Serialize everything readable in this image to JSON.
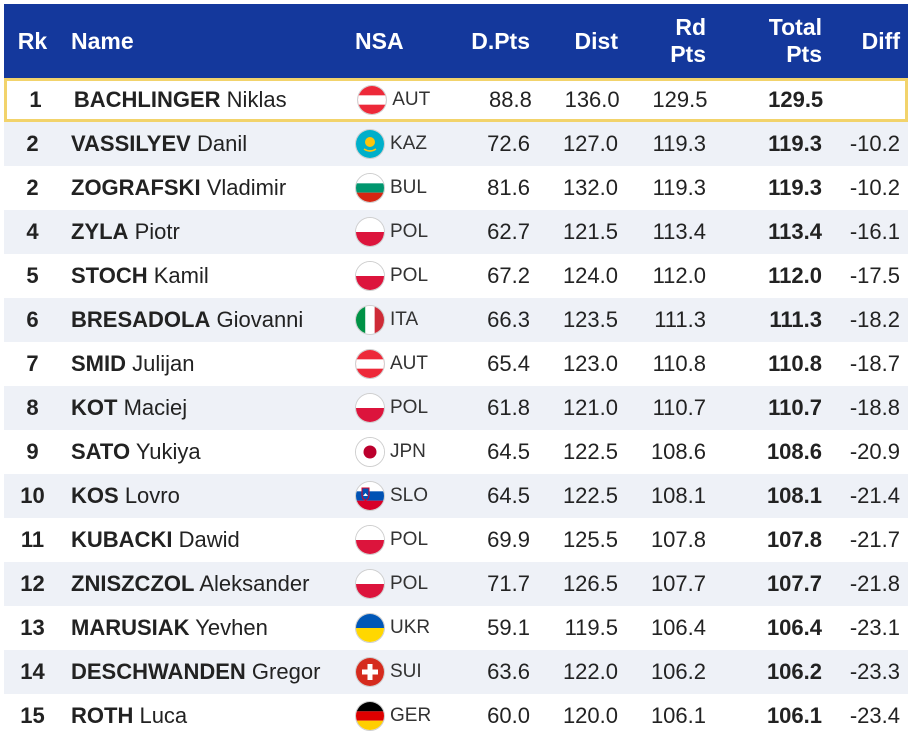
{
  "header": {
    "rk": "Rk",
    "name": "Name",
    "nsa": "NSA",
    "dpts": "D.Pts",
    "dist": "Dist",
    "rd_line1": "Rd",
    "rd_line2": "Pts",
    "total_line1": "Total",
    "total_line2": "Pts",
    "diff": "Diff"
  },
  "colors": {
    "header_bg": "#14389c",
    "highlight_border": "#f2d36b",
    "stripe": "#eef1f7"
  },
  "rows": [
    {
      "rk": "1",
      "surname": "BACHLINGER",
      "given": "Niklas",
      "flag": "aut-flag-icon",
      "nsa": "AUT",
      "dpts": "88.8",
      "dist": "136.0",
      "rd": "129.5",
      "total": "129.5",
      "diff": ""
    },
    {
      "rk": "2",
      "surname": "VASSILYEV",
      "given": "Danil",
      "flag": "kaz-flag-icon",
      "nsa": "KAZ",
      "dpts": "72.6",
      "dist": "127.0",
      "rd": "119.3",
      "total": "119.3",
      "diff": "-10.2"
    },
    {
      "rk": "2",
      "surname": "ZOGRAFSKI",
      "given": "Vladimir",
      "flag": "bul-flag-icon",
      "nsa": "BUL",
      "dpts": "81.6",
      "dist": "132.0",
      "rd": "119.3",
      "total": "119.3",
      "diff": "-10.2"
    },
    {
      "rk": "4",
      "surname": "ZYLA",
      "given": "Piotr",
      "flag": "pol-flag-icon",
      "nsa": "POL",
      "dpts": "62.7",
      "dist": "121.5",
      "rd": "113.4",
      "total": "113.4",
      "diff": "-16.1"
    },
    {
      "rk": "5",
      "surname": "STOCH",
      "given": "Kamil",
      "flag": "pol-flag-icon",
      "nsa": "POL",
      "dpts": "67.2",
      "dist": "124.0",
      "rd": "112.0",
      "total": "112.0",
      "diff": "-17.5"
    },
    {
      "rk": "6",
      "surname": "BRESADOLA",
      "given": "Giovanni",
      "flag": "ita-flag-icon",
      "nsa": "ITA",
      "dpts": "66.3",
      "dist": "123.5",
      "rd": "111.3",
      "total": "111.3",
      "diff": "-18.2"
    },
    {
      "rk": "7",
      "surname": "SMID",
      "given": "Julijan",
      "flag": "aut-flag-icon",
      "nsa": "AUT",
      "dpts": "65.4",
      "dist": "123.0",
      "rd": "110.8",
      "total": "110.8",
      "diff": "-18.7"
    },
    {
      "rk": "8",
      "surname": "KOT",
      "given": "Maciej",
      "flag": "pol-flag-icon",
      "nsa": "POL",
      "dpts": "61.8",
      "dist": "121.0",
      "rd": "110.7",
      "total": "110.7",
      "diff": "-18.8"
    },
    {
      "rk": "9",
      "surname": "SATO",
      "given": "Yukiya",
      "flag": "jpn-flag-icon",
      "nsa": "JPN",
      "dpts": "64.5",
      "dist": "122.5",
      "rd": "108.6",
      "total": "108.6",
      "diff": "-20.9"
    },
    {
      "rk": "10",
      "surname": "KOS",
      "given": "Lovro",
      "flag": "slo-flag-icon",
      "nsa": "SLO",
      "dpts": "64.5",
      "dist": "122.5",
      "rd": "108.1",
      "total": "108.1",
      "diff": "-21.4"
    },
    {
      "rk": "11",
      "surname": "KUBACKI",
      "given": "Dawid",
      "flag": "pol-flag-icon",
      "nsa": "POL",
      "dpts": "69.9",
      "dist": "125.5",
      "rd": "107.8",
      "total": "107.8",
      "diff": "-21.7"
    },
    {
      "rk": "12",
      "surname": "ZNISZCZOL",
      "given": "Aleksander",
      "flag": "pol-flag-icon",
      "nsa": "POL",
      "dpts": "71.7",
      "dist": "126.5",
      "rd": "107.7",
      "total": "107.7",
      "diff": "-21.8"
    },
    {
      "rk": "13",
      "surname": "MARUSIAK",
      "given": "Yevhen",
      "flag": "ukr-flag-icon",
      "nsa": "UKR",
      "dpts": "59.1",
      "dist": "119.5",
      "rd": "106.4",
      "total": "106.4",
      "diff": "-23.1"
    },
    {
      "rk": "14",
      "surname": "DESCHWANDEN",
      "given": "Gregor",
      "flag": "sui-flag-icon",
      "nsa": "SUI",
      "dpts": "63.6",
      "dist": "122.0",
      "rd": "106.2",
      "total": "106.2",
      "diff": "-23.3"
    },
    {
      "rk": "15",
      "surname": "ROTH",
      "given": "Luca",
      "flag": "ger-flag-icon",
      "nsa": "GER",
      "dpts": "60.0",
      "dist": "120.0",
      "rd": "106.1",
      "total": "106.1",
      "diff": "-23.4"
    }
  ]
}
